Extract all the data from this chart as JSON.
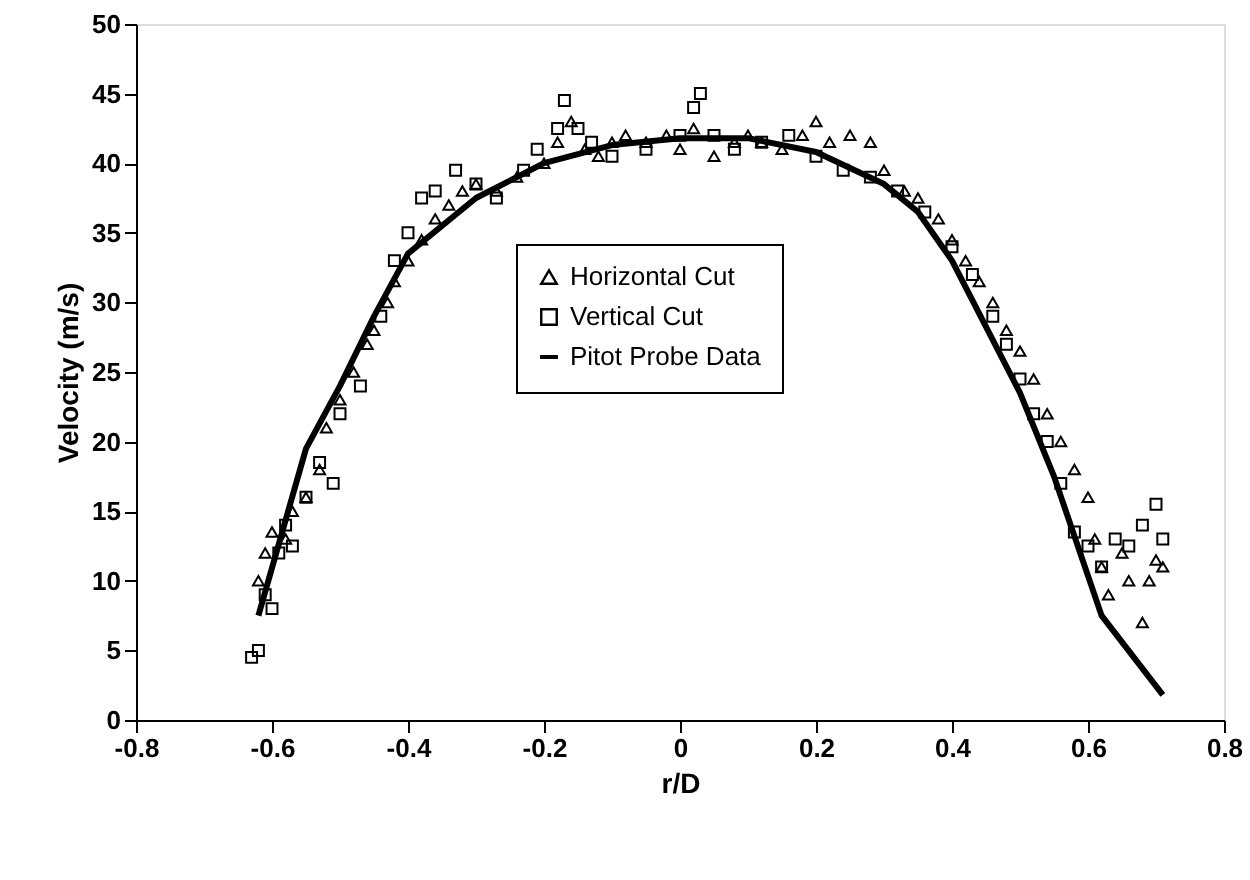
{
  "chart_data": {
    "type": "scatter",
    "xlabel": "r/D",
    "ylabel": "Velocity (m/s)",
    "xlim": [
      -0.8,
      0.8
    ],
    "xticks": [
      {
        "value": -0.8,
        "label": "-0.8"
      },
      {
        "value": -0.6,
        "label": "-0.6"
      },
      {
        "value": -0.4,
        "label": "-0.4"
      },
      {
        "value": -0.2,
        "label": "-0.2"
      },
      {
        "value": 0,
        "label": "0"
      },
      {
        "value": 0.2,
        "label": "0.2"
      },
      {
        "value": 0.4,
        "label": "0.4"
      },
      {
        "value": 0.6,
        "label": "0.6"
      },
      {
        "value": 0.8,
        "label": "0.8"
      }
    ],
    "ylim": [
      0,
      50
    ],
    "yticks": [
      0,
      5,
      10,
      15,
      20,
      25,
      30,
      35,
      40,
      45,
      50
    ],
    "grid": false,
    "legend": "center",
    "series": [
      {
        "name": "Horizontal Cut",
        "marker": "triangle",
        "color": "#000000",
        "x": [
          -0.62,
          -0.61,
          -0.6,
          -0.58,
          -0.57,
          -0.55,
          -0.53,
          -0.52,
          -0.5,
          -0.48,
          -0.46,
          -0.45,
          -0.43,
          -0.42,
          -0.4,
          -0.38,
          -0.36,
          -0.34,
          -0.32,
          -0.3,
          -0.27,
          -0.24,
          -0.2,
          -0.18,
          -0.16,
          -0.14,
          -0.12,
          -0.1,
          -0.08,
          -0.05,
          -0.02,
          0.0,
          0.02,
          0.05,
          0.08,
          0.1,
          0.12,
          0.15,
          0.18,
          0.2,
          0.22,
          0.25,
          0.28,
          0.3,
          0.33,
          0.35,
          0.38,
          0.4,
          0.42,
          0.44,
          0.46,
          0.48,
          0.5,
          0.52,
          0.54,
          0.56,
          0.58,
          0.6,
          0.61,
          0.62,
          0.63,
          0.65,
          0.66,
          0.68,
          0.69,
          0.7,
          0.71
        ],
        "values": [
          10,
          12,
          13.5,
          13,
          15,
          16,
          18,
          21,
          23,
          25,
          27,
          28,
          30,
          31.5,
          33,
          34.5,
          36,
          37,
          38,
          38.5,
          38,
          39,
          40,
          41.5,
          43,
          41,
          40.5,
          41.5,
          42,
          41.5,
          42,
          41,
          42.5,
          40.5,
          41.5,
          42,
          41.5,
          41,
          42,
          43,
          41.5,
          42,
          41.5,
          39.5,
          38,
          37.5,
          36,
          34.5,
          33,
          31.5,
          30,
          28,
          26.5,
          24.5,
          22,
          20,
          18,
          16,
          13,
          11,
          9,
          12,
          10,
          7,
          10,
          11.5,
          11
        ]
      },
      {
        "name": "Vertical Cut",
        "marker": "square",
        "color": "#000000",
        "x": [
          -0.63,
          -0.62,
          -0.61,
          -0.6,
          -0.59,
          -0.58,
          -0.57,
          -0.55,
          -0.53,
          -0.51,
          -0.5,
          -0.47,
          -0.44,
          -0.42,
          -0.4,
          -0.38,
          -0.36,
          -0.33,
          -0.3,
          -0.27,
          -0.23,
          -0.21,
          -0.18,
          -0.17,
          -0.15,
          -0.13,
          -0.1,
          -0.05,
          0,
          0.02,
          0.03,
          0.05,
          0.08,
          0.12,
          0.16,
          0.2,
          0.24,
          0.28,
          0.32,
          0.36,
          0.4,
          0.43,
          0.46,
          0.48,
          0.5,
          0.52,
          0.54,
          0.56,
          0.58,
          0.6,
          0.62,
          0.64,
          0.66,
          0.68,
          0.7,
          0.71
        ],
        "values": [
          4.5,
          5,
          9,
          8,
          12,
          14,
          12.5,
          16,
          18.5,
          17,
          22,
          24,
          29,
          33,
          35,
          37.5,
          38,
          39.5,
          38.5,
          37.5,
          39.5,
          41,
          42.5,
          44.5,
          42.5,
          41.5,
          40.5,
          41,
          42,
          44,
          45,
          42,
          41,
          41.5,
          42,
          40.5,
          39.5,
          39,
          38,
          36.5,
          34,
          32,
          29,
          27,
          24.5,
          22,
          20,
          17,
          13.5,
          12.5,
          11,
          13,
          12.5,
          14,
          15.5,
          13
        ]
      },
      {
        "name": "Pitot Probe Data",
        "type": "line",
        "marker": "none",
        "line_style": "solid",
        "color": "#000000",
        "x": [
          -0.62,
          -0.55,
          -0.5,
          -0.45,
          -0.4,
          -0.3,
          -0.2,
          -0.1,
          0,
          0.1,
          0.2,
          0.3,
          0.35,
          0.4,
          0.5,
          0.55,
          0.62,
          0.71
        ],
        "values": [
          7.5,
          19.5,
          24,
          29,
          33.5,
          37.5,
          40,
          41.3,
          41.8,
          41.8,
          40.8,
          38.5,
          36.5,
          33,
          23.5,
          17.5,
          7.5,
          1.8
        ]
      }
    ]
  }
}
